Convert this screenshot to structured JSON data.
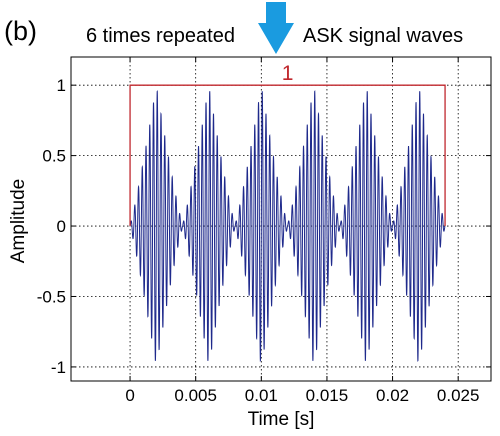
{
  "panel_label": "(b)",
  "header": {
    "left_text": "6 times repeated",
    "right_text": "ASK signal waves",
    "arrow_color": "#1a9be0",
    "arrow_icon": "down-arrow-icon"
  },
  "annotation": {
    "label": "1",
    "color": "#c0272d",
    "envelope_level": 1
  },
  "chart_data": {
    "type": "line",
    "title": "",
    "xlabel": "Time [s]",
    "ylabel": "Amplitude",
    "xlim": [
      -0.0045,
      0.0275
    ],
    "ylim": [
      -1.1,
      1.2
    ],
    "xticks": [
      0,
      0.005,
      0.01,
      0.015,
      0.02,
      0.025
    ],
    "xtick_labels": [
      "0",
      "0.005",
      "0.01",
      "0.015",
      "0.02",
      "0.025"
    ],
    "yticks": [
      -1,
      -0.5,
      0,
      0.5,
      1
    ],
    "ytick_labels": [
      "-1",
      "-0.5",
      "0",
      "0.5",
      "1"
    ],
    "grid": true,
    "line_color": "#1f2a8c",
    "series": [
      {
        "x_start": 0,
        "x_end": 0.024,
        "repeats": 6,
        "burst_period": 0.004,
        "peak_amplitude": 1
      }
    ]
  }
}
